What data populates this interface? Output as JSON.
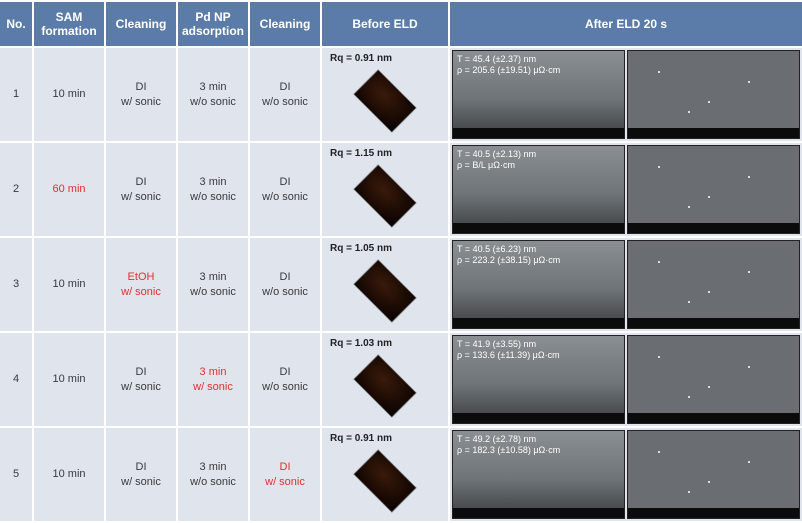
{
  "header": {
    "no": "No.",
    "sam": "SAM\nformation",
    "cl1": "Cleaning",
    "pd": "Pd NP\nadsorption",
    "cl2": "Cleaning",
    "before": "Before ELD",
    "after": "After ELD 20 s"
  },
  "rows": [
    {
      "no": "1",
      "sam": {
        "t": "10 min",
        "hl": false
      },
      "cl1": {
        "l1": "DI",
        "l2": "w/ sonic",
        "hl": false
      },
      "pd": {
        "l1": "3 min",
        "l2": "w/o sonic",
        "hl": false
      },
      "cl2": {
        "l1": "DI",
        "l2": "w/o sonic",
        "hl": false
      },
      "rq": "Rq = 0.91 nm",
      "sem": {
        "t": "T = 45.4 (±2.37) nm",
        "r": "ρ = 205.6 (±19.51) μΩ·cm"
      }
    },
    {
      "no": "2",
      "sam": {
        "t": "60 min",
        "hl": true
      },
      "cl1": {
        "l1": "DI",
        "l2": "w/ sonic",
        "hl": false
      },
      "pd": {
        "l1": "3 min",
        "l2": "w/o sonic",
        "hl": false
      },
      "cl2": {
        "l1": "DI",
        "l2": "w/o sonic",
        "hl": false
      },
      "rq": "Rq = 1.15 nm",
      "sem": {
        "t": "T = 40.5 (±2.13) nm",
        "r": "ρ = B/L μΩ·cm"
      }
    },
    {
      "no": "3",
      "sam": {
        "t": "10 min",
        "hl": false
      },
      "cl1": {
        "l1": "EtOH",
        "l2": "w/ sonic",
        "hl": true
      },
      "pd": {
        "l1": "3 min",
        "l2": "w/o sonic",
        "hl": false
      },
      "cl2": {
        "l1": "DI",
        "l2": "w/o sonic",
        "hl": false
      },
      "rq": "Rq = 1.05 nm",
      "sem": {
        "t": "T = 40.5 (±6.23) nm",
        "r": "ρ = 223.2 (±38.15) μΩ·cm"
      }
    },
    {
      "no": "4",
      "sam": {
        "t": "10 min",
        "hl": false
      },
      "cl1": {
        "l1": "DI",
        "l2": "w/ sonic",
        "hl": false
      },
      "pd": {
        "l1": "3 min",
        "l2": "w/ sonic",
        "hl": true
      },
      "cl2": {
        "l1": "DI",
        "l2": "w/o sonic",
        "hl": false
      },
      "rq": "Rq = 1.03 nm",
      "sem": {
        "t": "T = 41.9 (±3.55) nm",
        "r": "ρ = 133.6 (±11.39) μΩ·cm"
      }
    },
    {
      "no": "5",
      "sam": {
        "t": "10 min",
        "hl": false
      },
      "cl1": {
        "l1": "DI",
        "l2": "w/ sonic",
        "hl": false
      },
      "pd": {
        "l1": "3 min",
        "l2": "w/o sonic",
        "hl": false
      },
      "cl2": {
        "l1": "DI",
        "l2": "w/ sonic",
        "hl": true
      },
      "rq": "Rq = 0.91 nm",
      "sem": {
        "t": "T = 49.2 (±2.78) nm",
        "r": "ρ = 182.3 (±10.58) μΩ·cm"
      }
    }
  ],
  "colors": {
    "header_bg": "#5b7ca8",
    "cell_bg": "#dfe4ed",
    "highlight": "#e03030",
    "normal": "#3a3a3a"
  }
}
